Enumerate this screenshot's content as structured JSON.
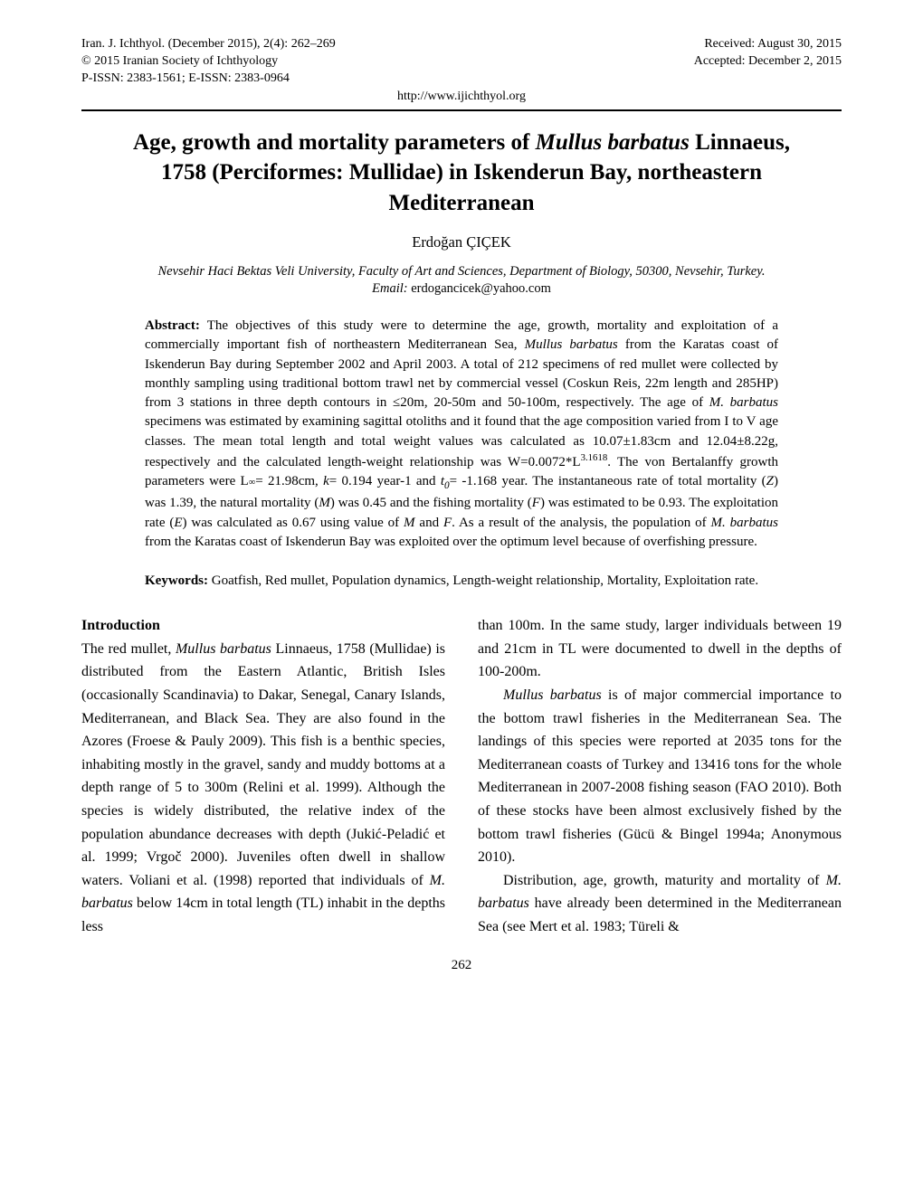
{
  "header": {
    "journal_line": "Iran. J. Ichthyol. (December 2015), 2(4): 262–269",
    "copyright": "© 2015 Iranian Society of Ichthyology",
    "issn": "P-ISSN: 2383-1561; E-ISSN: 2383-0964",
    "received": "Received: August 30, 2015",
    "accepted": "Accepted: December 2, 2015",
    "url": "http://www.ijichthyol.org"
  },
  "title": {
    "pre": "Age, growth and mortality parameters of ",
    "species": "Mullus barbatus",
    "post": " Linnaeus, 1758 (Perciformes: Mullidae) in Iskenderun Bay, northeastern Mediterranean"
  },
  "author": "Erdoğan ÇIÇEK",
  "affiliation": "Nevsehir Haci Bektas Veli University, Faculty of Art and Sciences, Department of Biology, 50300, Nevsehir, Turkey.",
  "email_label": "Email:",
  "email": "erdogancicek@yahoo.com",
  "abstract": {
    "heading": "Abstract:",
    "p1a": " The objectives of this study were to determine the age, growth, mortality and exploitation of a commercially important fish of northeastern Mediterranean Sea, ",
    "species1": "Mullus barbatus",
    "p1b": " from the Karatas coast of Iskenderun Bay during September 2002 and April 2003. A total of 212 specimens of red mullet were collected by monthly sampling using traditional bottom trawl net by commercial vessel (Coskun Reis, 22m length and 285HP) from 3 stations in three depth contours in ≤20m, 20-50m and 50-100m, respectively. The age of ",
    "species2": "M. barbatus",
    "p1c": " specimens was estimated by examining sagittal otoliths and it found that the age composition varied from I to V age classes. The mean total length and total weight values was calculated as 10.07±1.83cm and 12.04±8.22g, respectively and the calculated length-weight relationship was W=0.0072*L",
    "exp": "3.1618",
    "p1d": ". The von Bertalanffy growth parameters were L",
    "inf": "∞",
    "p1e": "= 21.98cm, ",
    "k_it": "k",
    "p1f": "= 0.194 year-1 and ",
    "t0_it": "t",
    "t0_sub": "0",
    "p1g": "= -1.168 year. The instantaneous rate of total mortality (",
    "Z": "Z",
    "p1h": ") was 1.39, the natural mortality (",
    "M": "M",
    "p1i": ") was 0.45 and the fishing mortality (",
    "F": "F",
    "p1j": ") was estimated to be 0.93. The exploitation rate (",
    "E": "E",
    "p1k": ") was calculated as 0.67 using value of ",
    "M2": "M",
    "p1l": " and ",
    "F2": "F",
    "p1m": ". As a result of the analysis, the population of ",
    "species3": "M. barbatus",
    "p1n": " from the Karatas coast of Iskenderun Bay was exploited over the optimum level because of overfishing pressure."
  },
  "keywords": {
    "heading": "Keywords:",
    "text": " Goatfish, Red mullet, Population dynamics, Length-weight relationship, Mortality, Exploitation rate."
  },
  "introduction": {
    "heading": "Introduction",
    "left_a": "The red mullet, ",
    "left_sp1": "Mullus barbatus",
    "left_b": "  Linnaeus, 1758 (Mullidae) is distributed from the Eastern Atlantic, British Isles (occasionally Scandinavia) to Dakar, Senegal, Canary Islands, Mediterranean, and Black Sea. They are also found in the Azores (Froese & Pauly 2009). This fish is a benthic species, inhabiting mostly in the gravel, sandy and muddy bottoms at a depth range of 5 to 300m (Relini et al. 1999). Although the species is widely distributed, the relative index of the population abundance decreases with depth (Jukić-Peladić et al. 1999; Vrgoč 2000). Juveniles often dwell in shallow waters. Voliani et al. (1998) reported that individuals of ",
    "left_sp2": "M. barbatus",
    "left_c": " below 14cm in total length (TL) inhabit in the depths less",
    "right_a": "than 100m. In the same study, larger individuals between 19 and 21cm in TL were documented to dwell in the depths of 100-200m.",
    "right_sp1": "Mullus barbatus",
    "right_b": " is of major commercial importance to the bottom trawl fisheries in the Mediterranean Sea. The landings of this species were reported at 2035 tons for the Mediterranean coasts of Turkey and 13416 tons for the whole Mediterranean in 2007-2008 fishing season (FAO 2010). Both of these stocks have been almost exclusively fished by the bottom trawl fisheries (Gücü & Bingel 1994a; Anonymous 2010).",
    "right_c": "Distribution, age, growth, maturity and mortality of ",
    "right_sp2": "M. barbatus",
    "right_d": " have already been determined in the Mediterranean Sea (see Mert et al. 1983; Türeli &"
  },
  "pagenum": "262"
}
